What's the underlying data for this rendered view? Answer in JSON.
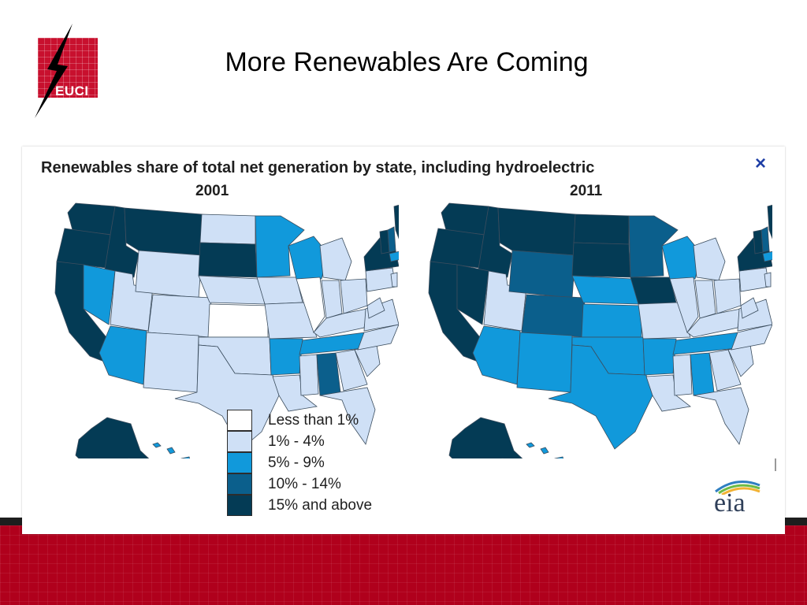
{
  "slide": {
    "title": "More Renewables Are Coming",
    "logo_text": "EUCI"
  },
  "figure": {
    "title": "Renewables share of total net generation by state, including hydroelectric",
    "close_symbol": "×",
    "source_logo": "eia"
  },
  "maps": [
    {
      "year": "2001"
    },
    {
      "year": "2011"
    }
  ],
  "legend": [
    {
      "label": "Less than 1%",
      "color": "#ffffff"
    },
    {
      "label": "1% - 4%",
      "color": "#cfe0f6"
    },
    {
      "label": "5% - 9%",
      "color": "#1199db"
    },
    {
      "label": "10% - 14%",
      "color": "#0b5f8c"
    },
    {
      "label": "15% and above",
      "color": "#043b55"
    }
  ],
  "colors": {
    "footer": "#b0001c",
    "logo_red": "#c8102e",
    "close_blue": "#1f3fa6"
  }
}
